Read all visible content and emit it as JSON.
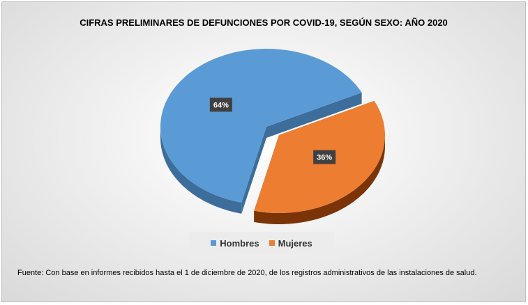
{
  "chart_data": {
    "type": "pie",
    "title": "CIFRAS PRELIMINARES DE DEFUNCIONES POR COVID-19, SEGÚN SEXO:  AÑO 2020",
    "categories": [
      "Hombres",
      "Mujeres"
    ],
    "values": [
      64,
      36
    ],
    "data_labels": [
      "64%",
      "36%"
    ],
    "colors": [
      "#5b9bd5",
      "#ed7d31"
    ],
    "side_colors": [
      "#3d6d9a",
      "#7a3408"
    ],
    "style": "3d-exploded",
    "legend_position": "bottom"
  },
  "footnote": "Fuente:  Con base en  informes recibidos hasta el 1 de diciembre de 2020, de  los registros administrativos de las instalaciones de salud."
}
